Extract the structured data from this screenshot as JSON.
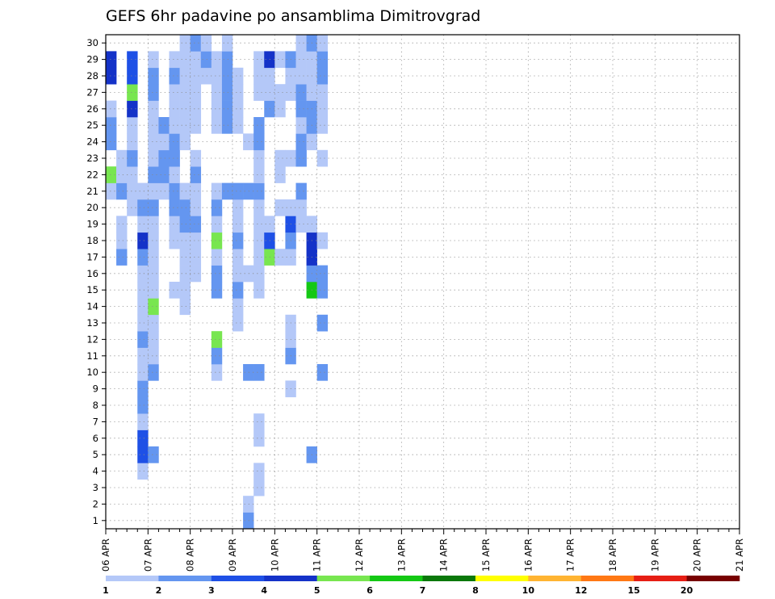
{
  "chart_data": {
    "type": "heatmap",
    "title": "GEFS 6hr padavine po ansamblima Dimitrovgrad",
    "x_labels": [
      "06 APR",
      "07 APR",
      "08 APR",
      "09 APR",
      "10 APR",
      "11 APR",
      "12 APR",
      "13 APR",
      "14 APR",
      "15 APR",
      "16 APR",
      "17 APR",
      "18 APR",
      "19 APR",
      "20 APR",
      "21 APR"
    ],
    "y_labels": [
      "1",
      "2",
      "3",
      "4",
      "5",
      "6",
      "7",
      "8",
      "9",
      "10",
      "11",
      "12",
      "13",
      "14",
      "15",
      "16",
      "17",
      "18",
      "19",
      "20",
      "21",
      "22",
      "23",
      "24",
      "25",
      "26",
      "27",
      "28",
      "29",
      "30"
    ],
    "x_steps_per_day": 4,
    "n_steps": 60,
    "legend": {
      "labels": [
        "1",
        "2",
        "3",
        "4",
        "5",
        "6",
        "7",
        "8",
        "10",
        "12",
        "15",
        "20"
      ],
      "colors": [
        "#b4c8f8",
        "#6496f0",
        "#1e50e6",
        "#1432c8",
        "#78e650",
        "#14c814",
        "#0a780a",
        "#ffff00",
        "#ffb432",
        "#ff7814",
        "#e61e14",
        "#780000"
      ]
    },
    "cells": [
      [
        20,
        0,
        1
      ],
      [
        21,
        0,
        5
      ],
      [
        21,
        1,
        1
      ],
      [
        22,
        1,
        1
      ],
      [
        23,
        0,
        2
      ],
      [
        24,
        0,
        2
      ],
      [
        25,
        0,
        1
      ],
      [
        27,
        0,
        4
      ],
      [
        28,
        0,
        4
      ],
      [
        16,
        1,
        2
      ],
      [
        17,
        1,
        1
      ],
      [
        18,
        1,
        1
      ],
      [
        20,
        1,
        2
      ],
      [
        21,
        1,
        1
      ],
      [
        19,
        2,
        1
      ],
      [
        20,
        2,
        1
      ],
      [
        21,
        2,
        1
      ],
      [
        22,
        2,
        2
      ],
      [
        23,
        2,
        1
      ],
      [
        24,
        2,
        1
      ],
      [
        25,
        2,
        4
      ],
      [
        26,
        2,
        5
      ],
      [
        27,
        2,
        3
      ],
      [
        28,
        2,
        3
      ],
      [
        3,
        3,
        1
      ],
      [
        4,
        3,
        3
      ],
      [
        5,
        3,
        3
      ],
      [
        6,
        3,
        1
      ],
      [
        7,
        3,
        2
      ],
      [
        8,
        3,
        2
      ],
      [
        9,
        3,
        1
      ],
      [
        10,
        3,
        1
      ],
      [
        11,
        3,
        2
      ],
      [
        12,
        3,
        1
      ],
      [
        13,
        3,
        1
      ],
      [
        14,
        3,
        1
      ],
      [
        15,
        3,
        1
      ],
      [
        16,
        3,
        2
      ],
      [
        17,
        3,
        4
      ],
      [
        18,
        3,
        1
      ],
      [
        19,
        3,
        2
      ],
      [
        20,
        3,
        1
      ],
      [
        4,
        4,
        2
      ],
      [
        9,
        4,
        2
      ],
      [
        10,
        4,
        1
      ],
      [
        11,
        4,
        1
      ],
      [
        12,
        4,
        1
      ],
      [
        13,
        4,
        5
      ],
      [
        14,
        4,
        1
      ],
      [
        15,
        4,
        1
      ],
      [
        16,
        4,
        1
      ],
      [
        17,
        4,
        1
      ],
      [
        18,
        4,
        1
      ],
      [
        19,
        4,
        2
      ],
      [
        20,
        4,
        1
      ],
      [
        21,
        4,
        2
      ],
      [
        22,
        4,
        1
      ],
      [
        23,
        4,
        1
      ],
      [
        24,
        4,
        1
      ],
      [
        25,
        4,
        1
      ],
      [
        26,
        4,
        2
      ],
      [
        27,
        4,
        2
      ],
      [
        28,
        4,
        1
      ],
      [
        20,
        5,
        1
      ],
      [
        21,
        5,
        2
      ],
      [
        22,
        5,
        2
      ],
      [
        23,
        5,
        1
      ],
      [
        24,
        5,
        2
      ],
      [
        14,
        6,
        1
      ],
      [
        17,
        6,
        1
      ],
      [
        18,
        6,
        1
      ],
      [
        19,
        6,
        2
      ],
      [
        20,
        6,
        2
      ],
      [
        21,
        6,
        1
      ],
      [
        22,
        6,
        2
      ],
      [
        23,
        6,
        2
      ],
      [
        24,
        6,
        1
      ],
      [
        25,
        6,
        1
      ],
      [
        26,
        6,
        1
      ],
      [
        27,
        6,
        2
      ],
      [
        28,
        6,
        1
      ],
      [
        13,
        7,
        1
      ],
      [
        14,
        7,
        1
      ],
      [
        15,
        7,
        1
      ],
      [
        16,
        7,
        1
      ],
      [
        17,
        7,
        1
      ],
      [
        18,
        7,
        2
      ],
      [
        19,
        7,
        2
      ],
      [
        20,
        7,
        1
      ],
      [
        23,
        7,
        1
      ],
      [
        24,
        7,
        1
      ],
      [
        25,
        7,
        1
      ],
      [
        26,
        7,
        1
      ],
      [
        27,
        7,
        1
      ],
      [
        28,
        7,
        1
      ],
      [
        29,
        7,
        1
      ],
      [
        15,
        8,
        1
      ],
      [
        16,
        8,
        1
      ],
      [
        17,
        8,
        1
      ],
      [
        18,
        8,
        2
      ],
      [
        19,
        8,
        1
      ],
      [
        20,
        8,
        1
      ],
      [
        21,
        8,
        2
      ],
      [
        22,
        8,
        1
      ],
      [
        24,
        8,
        1
      ],
      [
        25,
        8,
        1
      ],
      [
        26,
        8,
        1
      ],
      [
        27,
        8,
        1
      ],
      [
        28,
        8,
        1
      ],
      [
        29,
        8,
        2
      ],
      [
        27,
        9,
        1
      ],
      [
        28,
        9,
        2
      ],
      [
        29,
        9,
        1
      ],
      [
        9,
        10,
        1
      ],
      [
        10,
        10,
        2
      ],
      [
        11,
        10,
        5
      ],
      [
        14,
        10,
        2
      ],
      [
        15,
        10,
        2
      ],
      [
        16,
        10,
        1
      ],
      [
        17,
        10,
        5
      ],
      [
        18,
        10,
        1
      ],
      [
        19,
        10,
        2
      ],
      [
        20,
        10,
        1
      ],
      [
        24,
        10,
        1
      ],
      [
        25,
        10,
        1
      ],
      [
        26,
        10,
        1
      ],
      [
        27,
        10,
        1
      ],
      [
        28,
        10,
        1
      ],
      [
        20,
        11,
        2
      ],
      [
        24,
        11,
        2
      ],
      [
        25,
        11,
        2
      ],
      [
        26,
        11,
        2
      ],
      [
        27,
        11,
        2
      ],
      [
        28,
        11,
        2
      ],
      [
        29,
        11,
        1
      ],
      [
        12,
        12,
        1
      ],
      [
        13,
        12,
        1
      ],
      [
        14,
        12,
        2
      ],
      [
        15,
        12,
        1
      ],
      [
        16,
        12,
        1
      ],
      [
        17,
        12,
        2
      ],
      [
        18,
        12,
        1
      ],
      [
        19,
        12,
        1
      ],
      [
        20,
        12,
        2
      ],
      [
        24,
        12,
        1
      ],
      [
        25,
        12,
        1
      ],
      [
        26,
        12,
        1
      ],
      [
        27,
        12,
        1
      ],
      [
        0,
        13,
        2
      ],
      [
        1,
        13,
        1
      ],
      [
        9,
        13,
        2
      ],
      [
        15,
        13,
        1
      ],
      [
        20,
        13,
        2
      ],
      [
        23,
        13,
        1
      ],
      [
        2,
        14,
        1
      ],
      [
        3,
        14,
        1
      ],
      [
        5,
        14,
        1
      ],
      [
        6,
        14,
        1
      ],
      [
        9,
        14,
        2
      ],
      [
        14,
        14,
        1
      ],
      [
        15,
        14,
        1
      ],
      [
        16,
        14,
        1
      ],
      [
        17,
        14,
        1
      ],
      [
        18,
        14,
        1
      ],
      [
        19,
        14,
        1
      ],
      [
        20,
        14,
        2
      ],
      [
        21,
        14,
        1
      ],
      [
        22,
        14,
        1
      ],
      [
        23,
        14,
        2
      ],
      [
        24,
        14,
        2
      ],
      [
        26,
        14,
        1
      ],
      [
        27,
        14,
        1
      ],
      [
        28,
        14,
        1
      ],
      [
        16,
        15,
        5
      ],
      [
        17,
        15,
        3
      ],
      [
        18,
        15,
        1
      ],
      [
        25,
        15,
        2
      ],
      [
        26,
        15,
        1
      ],
      [
        27,
        15,
        1
      ],
      [
        28,
        15,
        4
      ],
      [
        16,
        16,
        1
      ],
      [
        19,
        16,
        1
      ],
      [
        21,
        16,
        1
      ],
      [
        22,
        16,
        1
      ],
      [
        25,
        16,
        1
      ],
      [
        26,
        16,
        1
      ],
      [
        28,
        16,
        1
      ],
      [
        8,
        17,
        1
      ],
      [
        10,
        17,
        2
      ],
      [
        11,
        17,
        1
      ],
      [
        12,
        17,
        1
      ],
      [
        16,
        17,
        1
      ],
      [
        17,
        17,
        2
      ],
      [
        18,
        17,
        3
      ],
      [
        19,
        17,
        1
      ],
      [
        22,
        17,
        1
      ],
      [
        26,
        17,
        1
      ],
      [
        27,
        17,
        1
      ],
      [
        28,
        17,
        2
      ],
      [
        18,
        18,
        1
      ],
      [
        19,
        18,
        1
      ],
      [
        20,
        18,
        2
      ],
      [
        22,
        18,
        2
      ],
      [
        23,
        18,
        2
      ],
      [
        24,
        18,
        1
      ],
      [
        25,
        18,
        2
      ],
      [
        26,
        18,
        2
      ],
      [
        27,
        18,
        1
      ],
      [
        28,
        18,
        1
      ],
      [
        29,
        18,
        1
      ],
      [
        4,
        19,
        2
      ],
      [
        14,
        19,
        6
      ],
      [
        15,
        19,
        2
      ],
      [
        16,
        19,
        4
      ],
      [
        17,
        19,
        4
      ],
      [
        18,
        19,
        1
      ],
      [
        23,
        19,
        1
      ],
      [
        24,
        19,
        2
      ],
      [
        25,
        19,
        2
      ],
      [
        26,
        19,
        1
      ],
      [
        27,
        19,
        1
      ],
      [
        28,
        19,
        1
      ],
      [
        29,
        19,
        2
      ],
      [
        9,
        20,
        2
      ],
      [
        12,
        20,
        2
      ],
      [
        14,
        20,
        2
      ],
      [
        15,
        20,
        2
      ],
      [
        17,
        20,
        1
      ],
      [
        22,
        20,
        1
      ],
      [
        24,
        20,
        1
      ],
      [
        25,
        20,
        1
      ],
      [
        26,
        20,
        1
      ],
      [
        27,
        20,
        2
      ],
      [
        28,
        20,
        2
      ],
      [
        29,
        20,
        1
      ]
    ],
    "grid": true
  }
}
